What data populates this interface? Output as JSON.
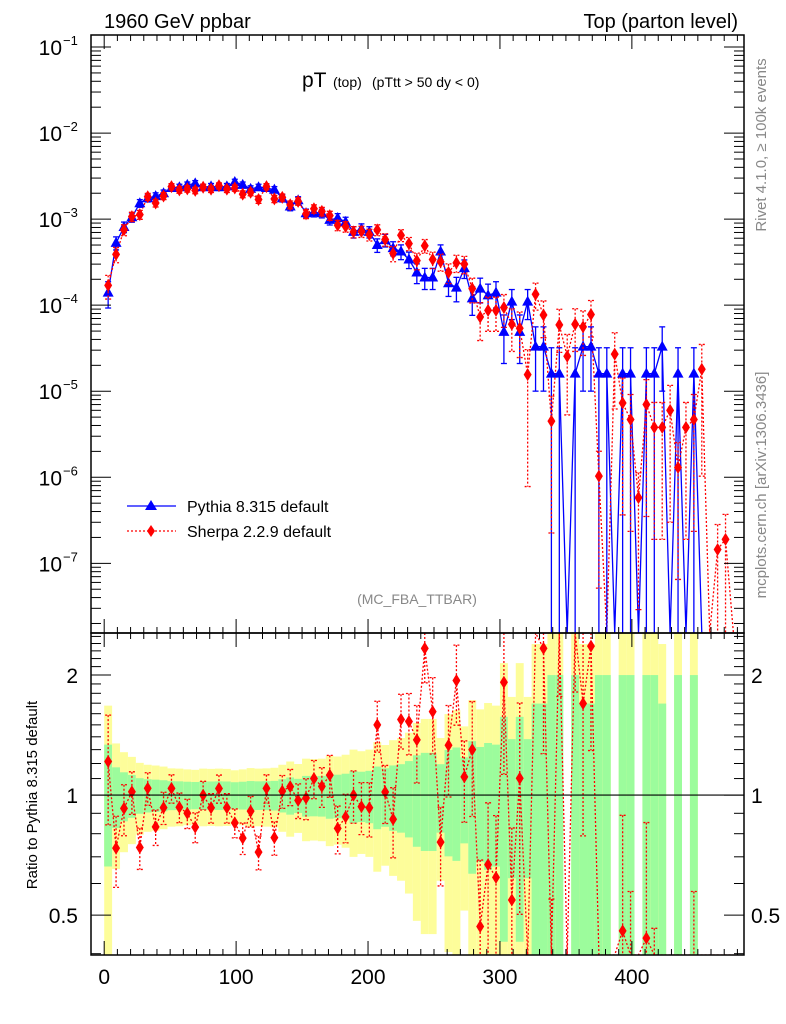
{
  "header": {
    "beam": "1960 GeV ppbar",
    "process": "Top (parton level)",
    "side_info": "Rivet 4.1.0, ≥ 100k events",
    "side_source": "mcplots.cern.ch [arXiv:1306.3436]",
    "analysis_id": "(MC_FBA_TTBAR)"
  },
  "chart_data": {
    "type": "scatter",
    "title": {
      "main": "pT",
      "sub": "(top)",
      "cut": "(pTtt > 50 dy < 0)"
    },
    "xlabel": "",
    "ylabel": "",
    "xlim": [
      -10,
      485
    ],
    "ylim": [
      1.55e-08,
      0.138
    ],
    "yscale": "log",
    "legend_position": "bottom-left",
    "x_ticks": [
      {
        "v": 0,
        "label": "0"
      },
      {
        "v": 100,
        "label": "100"
      },
      {
        "v": 200,
        "label": "200"
      },
      {
        "v": 300,
        "label": "300"
      },
      {
        "v": 400,
        "label": "400"
      }
    ],
    "y_ticks": [
      {
        "v": -1,
        "base": "10",
        "exp": "−1"
      },
      {
        "v": -2,
        "base": "10",
        "exp": "−2"
      },
      {
        "v": -3,
        "base": "10",
        "exp": "−3"
      },
      {
        "v": -4,
        "base": "10",
        "exp": "−4"
      },
      {
        "v": -5,
        "base": "10",
        "exp": "−5"
      },
      {
        "v": -6,
        "base": "10",
        "exp": "−6"
      },
      {
        "v": -7,
        "base": "10",
        "exp": "−7"
      }
    ],
    "x": [
      3,
      9,
      15,
      21,
      27,
      33,
      39,
      45,
      51,
      57,
      63,
      69,
      75,
      81,
      87,
      93,
      99,
      105,
      111,
      117,
      123,
      129,
      135,
      141,
      147,
      153,
      159,
      165,
      171,
      177,
      183,
      189,
      195,
      201,
      207,
      213,
      219,
      225,
      231,
      237,
      243,
      249,
      255,
      261,
      267,
      273,
      279,
      285,
      291,
      297,
      303,
      309,
      315,
      321,
      327,
      333,
      339,
      345,
      351,
      357,
      363,
      369,
      375,
      381,
      387,
      393,
      399,
      405,
      411,
      417,
      423,
      429,
      435,
      441,
      447,
      453,
      459,
      465,
      471,
      477
    ],
    "single_event_weight": 1.6e-05,
    "series": [
      {
        "name": "Pythia 8.315 default",
        "color": "#0000ff",
        "marker": "triangle",
        "values": [
          0.00014,
          0.00053,
          0.00081,
          0.00105,
          0.00153,
          0.00175,
          0.00185,
          0.002,
          0.0023,
          0.00235,
          0.0025,
          0.0026,
          0.00235,
          0.0024,
          0.00235,
          0.0024,
          0.0027,
          0.0025,
          0.00225,
          0.00235,
          0.0023,
          0.0022,
          0.00175,
          0.0014,
          0.00166,
          0.00117,
          0.0012,
          0.00117,
          0.00098,
          0.00103,
          0.00093,
          0.00071,
          0.00077,
          0.00071,
          0.0005,
          0.00057,
          0.00046,
          0.00042,
          0.00034,
          0.00024,
          0.00021,
          0.00021,
          0.00042,
          0.00018,
          0.00016,
          0.00027,
          0.00012,
          0.000156,
          0.00013,
          0.00014,
          4.9e-05,
          0.00011,
          4.9e-05,
          0.00011,
          3.3e-05,
          3.3e-05,
          1.6e-05,
          1.6e-05,
          null,
          1.6e-05,
          3.3e-05,
          3.3e-05,
          1.6e-05,
          1.6e-05,
          null,
          1.6e-05,
          1.6e-05,
          null,
          1.6e-05,
          1.6e-05,
          3.3e-05,
          null,
          1.6e-05,
          null,
          1.6e-05,
          null,
          null,
          null,
          null,
          null
        ]
      },
      {
        "name": "Sherpa 2.2.9 default",
        "color": "#ff0000",
        "marker": "diamond",
        "values": [
          0.00017,
          0.00039,
          0.00075,
          0.00107,
          0.00113,
          0.00182,
          0.00154,
          0.00186,
          0.00239,
          0.00219,
          0.00225,
          0.00216,
          0.00235,
          0.00223,
          0.00244,
          0.00223,
          0.0023,
          0.00195,
          0.00205,
          0.00169,
          0.00239,
          0.00172,
          0.00179,
          0.00147,
          0.00161,
          0.00115,
          0.00132,
          0.00123,
          0.0011,
          0.00085,
          0.00082,
          0.00071,
          0.00072,
          0.00066,
          0.00075,
          0.00058,
          0.0004,
          0.00065,
          0.00052,
          0.00033,
          0.00049,
          0.00034,
          0.00032,
          0.00024,
          0.00031,
          0.0003,
          0.000156,
          7.3e-05,
          8.7e-05,
          8.7e-05,
          9.4e-05,
          6e-05,
          5.4e-05,
          1.56e-05,
          0.000134,
          7.7e-05,
          4.5e-06,
          5.9e-05,
          2.55e-05,
          6e-05,
          5.6e-05,
          7.8e-05,
          1.03e-06,
          null,
          2.7e-05,
          7.3e-06,
          4.7e-06,
          5.8e-07,
          7e-06,
          3.8e-06,
          3.8e-06,
          6e-06,
          1.3e-06,
          3.8e-06,
          4.7e-06,
          1.8e-05,
          null,
          1.45e-07,
          1.9e-07,
          null
        ]
      }
    ],
    "ratio": {
      "ylabel": "Ratio to Pythia 8.315 default",
      "yscale": "log",
      "ylim": [
        0.397,
        2.55
      ],
      "y_ticks": [
        {
          "v": 0.5,
          "label": "0.5"
        },
        {
          "v": 1,
          "label": "1"
        },
        {
          "v": 2,
          "label": "2"
        }
      ],
      "band_colors": {
        "inner": "#9cfc9c",
        "outer": "#fdfd9a"
      }
    }
  }
}
